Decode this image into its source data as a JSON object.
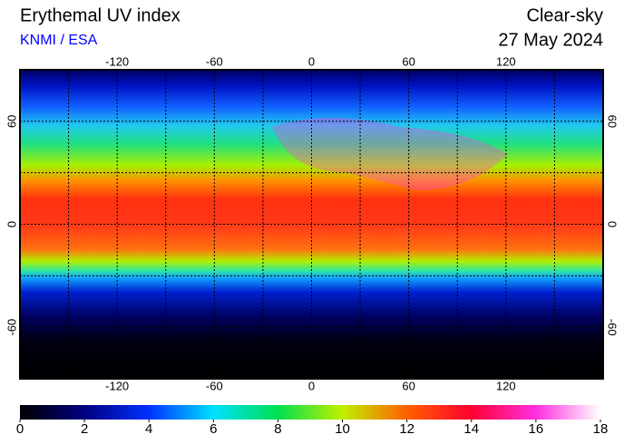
{
  "header": {
    "title": "Erythemal UV index",
    "source": "KNMI / ESA",
    "condition": "Clear-sky",
    "date": "27 May 2024"
  },
  "map": {
    "xlim": [
      -180,
      180
    ],
    "ylim": [
      -90,
      90
    ],
    "xticks": [
      -120,
      -60,
      0,
      60,
      120
    ],
    "yticks": [
      -60,
      0,
      60
    ]
  },
  "colorbar": {
    "lim": [
      0,
      18
    ],
    "ticks": [
      0,
      2,
      4,
      6,
      8,
      10,
      12,
      14,
      16,
      18
    ],
    "colors": [
      "#000000",
      "#000080",
      "#0030ff",
      "#00e0ff",
      "#00e050",
      "#c0f000",
      "#ff6000",
      "#ff0030",
      "#ff30e0",
      "#ffffff"
    ]
  }
}
